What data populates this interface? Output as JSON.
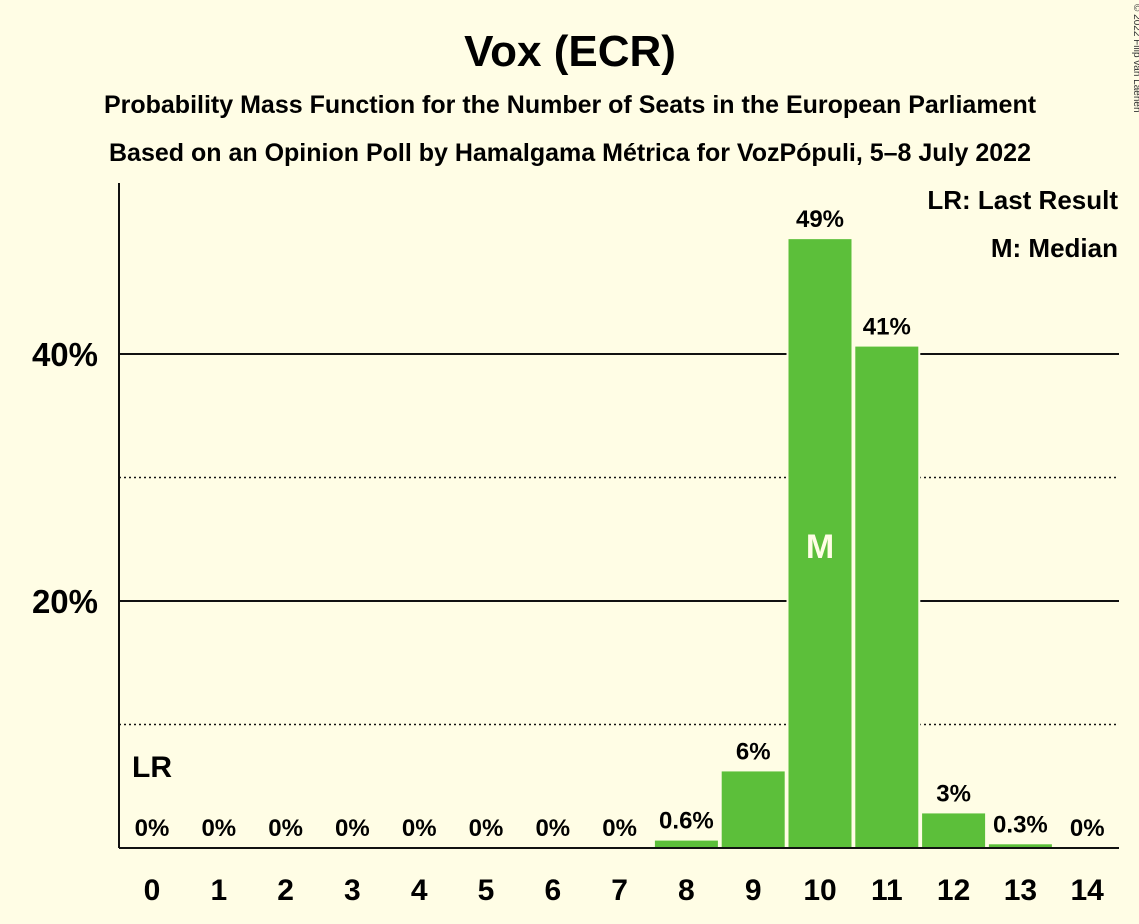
{
  "chart_data": {
    "type": "bar",
    "title": "Vox (ECR)",
    "subtitle_1": "Probability Mass Function for the Number of Seats in the European Parliament",
    "subtitle_2": "Based on an Opinion Poll by Hamalgama Métrica for VozPópuli, 5–8 July 2022",
    "categories": [
      "0",
      "1",
      "2",
      "3",
      "4",
      "5",
      "6",
      "7",
      "8",
      "9",
      "10",
      "11",
      "12",
      "13",
      "14"
    ],
    "values": [
      0,
      0,
      0,
      0,
      0,
      0,
      0,
      0,
      0.6,
      6.2,
      49.3,
      40.6,
      2.8,
      0.3,
      0
    ],
    "labels": [
      "0%",
      "0%",
      "0%",
      "0%",
      "0%",
      "0%",
      "0%",
      "0%",
      "0.6%",
      "6%",
      "49%",
      "41%",
      "3%",
      "0.3%",
      "0%"
    ],
    "ylim": [
      0,
      54
    ],
    "yticks": [
      {
        "value": 20,
        "label": "20%"
      },
      {
        "value": 40,
        "label": "40%"
      }
    ],
    "minor_gridlines": [
      10,
      30
    ],
    "last_result_seat": "0",
    "last_result_marker": "LR",
    "median_seat": "10",
    "median_marker": "M",
    "legend": [
      "LR: Last Result",
      "M: Median"
    ],
    "bar_color": "#5cbf3a",
    "copyright": "© 2022 Filip van Laenen"
  }
}
